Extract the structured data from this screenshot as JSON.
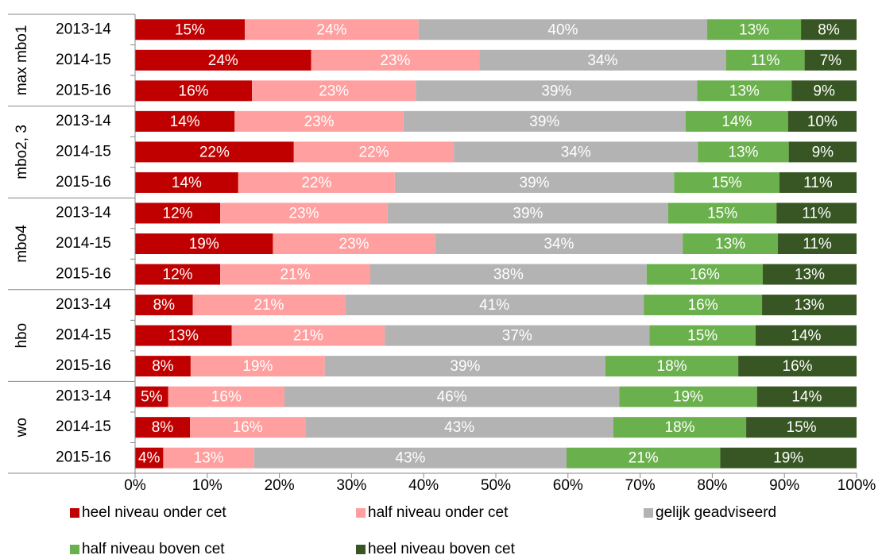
{
  "chart_data": {
    "type": "stacked-barh",
    "groups": [
      {
        "name": "max mbo1",
        "categories": [
          "2013-14",
          "2014-15",
          "2015-16"
        ]
      },
      {
        "name": "mbo2, 3",
        "categories": [
          "2013-14",
          "2014-15",
          "2015-16"
        ]
      },
      {
        "name": "mbo4",
        "categories": [
          "2013-14",
          "2014-15",
          "2015-16"
        ]
      },
      {
        "name": "hbo",
        "categories": [
          "2013-14",
          "2014-15",
          "2015-16"
        ]
      },
      {
        "name": "wo",
        "categories": [
          "2013-14",
          "2014-15",
          "2015-16"
        ]
      }
    ],
    "series": [
      {
        "name": "heel niveau onder cet",
        "color": "#c00000",
        "values": [
          15.2,
          24.4,
          16.2,
          13.8,
          22.0,
          14.3,
          11.8,
          19.1,
          11.8,
          8.0,
          13.4,
          7.7,
          4.6,
          7.6,
          3.9
        ],
        "value_labels": [
          "15%",
          "24%",
          "16%",
          "14%",
          "22%",
          "14%",
          "12%",
          "19%",
          "12%",
          "8%",
          "13%",
          "8%",
          "5%",
          "8%",
          "4%"
        ]
      },
      {
        "name": "half niveau onder cet",
        "color": "#ff9f9f",
        "values": [
          24.1,
          23.3,
          22.7,
          23.4,
          22.2,
          21.7,
          23.2,
          22.5,
          20.8,
          21.1,
          21.2,
          18.6,
          16.1,
          16.0,
          12.6
        ],
        "value_labels": [
          "24%",
          "23%",
          "23%",
          "23%",
          "22%",
          "22%",
          "23%",
          "23%",
          "21%",
          "21%",
          "21%",
          "19%",
          "16%",
          "16%",
          "13%"
        ]
      },
      {
        "name": "gelijk geadviseerd",
        "color": "#b3b3b3",
        "values": [
          40.0,
          34.2,
          39.0,
          39.1,
          33.8,
          38.7,
          38.9,
          34.3,
          38.3,
          41.4,
          36.7,
          38.9,
          46.4,
          42.7,
          43.3
        ],
        "value_labels": [
          "40%",
          "34%",
          "39%",
          "39%",
          "34%",
          "39%",
          "39%",
          "34%",
          "38%",
          "41%",
          "37%",
          "39%",
          "46%",
          "43%",
          "43%"
        ]
      },
      {
        "name": "half niveau boven cet",
        "color": "#6ab04c",
        "values": [
          13.0,
          10.9,
          13.1,
          14.2,
          12.6,
          14.6,
          15.0,
          13.2,
          16.1,
          16.4,
          14.7,
          18.4,
          19.1,
          18.4,
          21.3
        ],
        "value_labels": [
          "13%",
          "11%",
          "13%",
          "14%",
          "13%",
          "15%",
          "15%",
          "13%",
          "16%",
          "16%",
          "15%",
          "18%",
          "19%",
          "18%",
          "21%"
        ]
      },
      {
        "name": "heel niveau boven cet",
        "color": "#375623",
        "values": [
          7.7,
          7.2,
          9.0,
          9.5,
          9.4,
          10.7,
          11.1,
          10.9,
          13.0,
          13.1,
          14.0,
          16.4,
          13.8,
          15.3,
          18.9
        ],
        "value_labels": [
          "8%",
          "7%",
          "9%",
          "10%",
          "9%",
          "11%",
          "11%",
          "11%",
          "13%",
          "13%",
          "14%",
          "16%",
          "14%",
          "15%",
          "19%"
        ]
      }
    ],
    "xlim": [
      0,
      100
    ],
    "xticks": [
      {
        "value": 0,
        "label": "0%"
      },
      {
        "value": 10,
        "label": "10%"
      },
      {
        "value": 20,
        "label": "20%"
      },
      {
        "value": 30,
        "label": "30%"
      },
      {
        "value": 40,
        "label": "40%"
      },
      {
        "value": 50,
        "label": "50%"
      },
      {
        "value": 60,
        "label": "60%"
      },
      {
        "value": 70,
        "label": "70%"
      },
      {
        "value": 80,
        "label": "80%"
      },
      {
        "value": 90,
        "label": "90%"
      },
      {
        "value": 100,
        "label": "100%"
      }
    ],
    "grid": false
  }
}
